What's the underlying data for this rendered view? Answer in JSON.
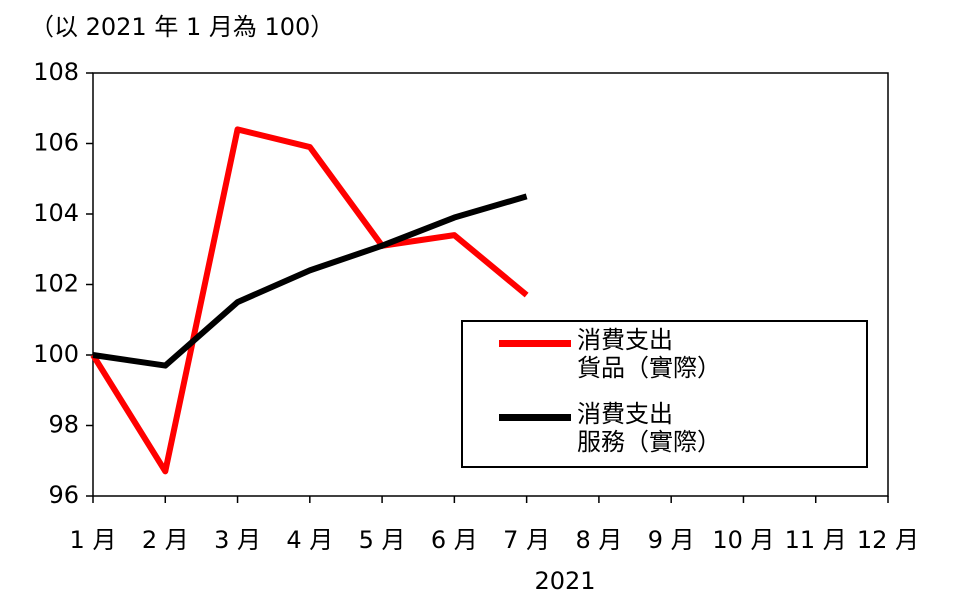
{
  "chart_data": {
    "type": "line",
    "subtitle": "（以 2021 年 1 月為 100）",
    "x_label": "2021",
    "categories": [
      "1 月",
      "2 月",
      "3 月",
      "4 月",
      "5 月",
      "6 月",
      "7 月",
      "8 月",
      "9 月",
      "10 月",
      "11 月",
      "12 月"
    ],
    "series": [
      {
        "name": "消費支出\n貨品（實際）",
        "color": "#ff0000",
        "values": [
          100,
          96.7,
          106.4,
          105.9,
          103.1,
          103.4,
          101.7,
          null,
          null,
          null,
          null,
          null
        ]
      },
      {
        "name": "消費支出\n服務（實際）",
        "color": "#000000",
        "values": [
          100,
          99.7,
          101.5,
          102.4,
          103.1,
          103.9,
          104.5,
          null,
          null,
          null,
          null,
          null
        ]
      }
    ],
    "ylim": [
      96,
      108
    ],
    "yticks": [
      96,
      98,
      100,
      102,
      104,
      106,
      108
    ],
    "legend": "lower right"
  }
}
